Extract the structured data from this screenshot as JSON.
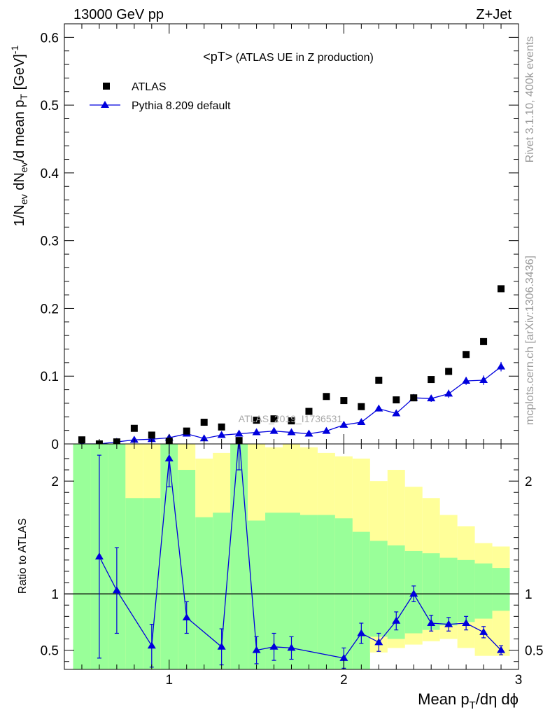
{
  "header": {
    "left": "13000 GeV pp",
    "right": "Z+Jet"
  },
  "side_labels": {
    "rivet": "Rivet 3.1.10,  400k events",
    "mcplots": "mcplots.cern.ch [arXiv:1306.3436]"
  },
  "colors": {
    "data": "#000000",
    "mc": "#0000dd",
    "band_inner": "#99ff99",
    "band_outer": "#ffff99"
  },
  "chart_data": [
    {
      "type": "scatter",
      "title_main": "<pT>",
      "title_sub": " (ATLAS UE in Z production)",
      "ylabel": "1/N_ev dN_ev/d mean p_T [GeV]^-1",
      "watermark": "ATLAS_2019_I1736531",
      "xlim": [
        0.4,
        3.0
      ],
      "ylim": [
        0,
        0.62
      ],
      "yticks": [
        0,
        0.1,
        0.2,
        0.3,
        0.4,
        0.5,
        0.6
      ],
      "ytick_labels": [
        "0",
        "0.1",
        "0.2",
        "0.3",
        "0.4",
        "0.5",
        "0.6"
      ],
      "legend": {
        "position": "top-left",
        "entries": [
          "ATLAS",
          "Pythia 8.209 default"
        ]
      },
      "series": [
        {
          "name": "ATLAS",
          "marker": "square",
          "x": [
            0.5,
            0.6,
            0.7,
            0.8,
            0.9,
            1.0,
            1.1,
            1.2,
            1.3,
            1.4,
            1.5,
            1.6,
            1.7,
            1.8,
            1.9,
            2.0,
            2.1,
            2.2,
            2.3,
            2.4,
            2.5,
            2.6,
            2.7,
            2.8,
            2.9
          ],
          "y": [
            0.006,
            0.0,
            0.003,
            0.023,
            0.013,
            0.004,
            0.019,
            0.032,
            0.025,
            0.005,
            0.035,
            0.037,
            0.034,
            0.048,
            0.07,
            0.064,
            0.055,
            0.094,
            0.065,
            0.068,
            0.095,
            0.107,
            0.132,
            0.151,
            0.229
          ]
        },
        {
          "name": "Pythia 8.209 default",
          "marker": "triangle",
          "x": [
            0.5,
            0.6,
            0.7,
            0.8,
            0.9,
            1.0,
            1.1,
            1.2,
            1.3,
            1.4,
            1.5,
            1.6,
            1.7,
            1.8,
            1.9,
            2.0,
            2.1,
            2.2,
            2.3,
            2.4,
            2.5,
            2.6,
            2.7,
            2.8,
            2.9
          ],
          "y": [
            0.0,
            0.0,
            0.003,
            0.006,
            0.007,
            0.009,
            0.015,
            0.008,
            0.013,
            0.015,
            0.017,
            0.019,
            0.017,
            0.015,
            0.019,
            0.028,
            0.032,
            0.052,
            0.045,
            0.068,
            0.067,
            0.074,
            0.093,
            0.094,
            0.114
          ],
          "err": [
            0.001,
            0.001,
            0.001,
            0.001,
            0.001,
            0.001,
            0.002,
            0.001,
            0.002,
            0.002,
            0.002,
            0.002,
            0.002,
            0.002,
            0.002,
            0.003,
            0.003,
            0.004,
            0.004,
            0.005,
            0.005,
            0.006,
            0.006,
            0.007,
            0.007
          ]
        }
      ]
    },
    {
      "type": "line",
      "ylabel": "Ratio to ATLAS",
      "xlabel": "Mean p_T/dη dϕ",
      "xlim": [
        0.4,
        3.0
      ],
      "ylim": [
        0.33,
        2.33
      ],
      "yticks": [
        0.5,
        1,
        2
      ],
      "ytick_labels": [
        "0.5",
        "1",
        "2"
      ],
      "xticks": [
        1,
        2,
        3
      ],
      "xtick_labels": [
        "1",
        "2",
        "3"
      ],
      "reference": 1,
      "bands": {
        "bin_edges": [
          0.45,
          0.55,
          0.65,
          0.75,
          0.85,
          0.95,
          1.05,
          1.15,
          1.25,
          1.35,
          1.45,
          1.55,
          1.65,
          1.75,
          1.85,
          1.95,
          2.05,
          2.15,
          2.25,
          2.35,
          2.45,
          2.55,
          2.65,
          2.75,
          2.85,
          2.95
        ],
        "outer_lo": [
          0.2,
          0.2,
          0.2,
          0.38,
          0.2,
          0.2,
          0.2,
          0.2,
          0.2,
          0.2,
          0.2,
          0.2,
          0.2,
          0.2,
          0.48,
          0.2,
          0.38,
          0.48,
          0.52,
          0.55,
          0.58,
          0.6,
          0.52,
          0.45,
          0.45
        ],
        "outer_hi": [
          2.4,
          2.4,
          2.4,
          2.35,
          2.35,
          2.4,
          2.35,
          2.2,
          2.25,
          2.4,
          2.4,
          2.3,
          2.35,
          2.3,
          2.25,
          2.22,
          2.2,
          2.0,
          2.1,
          1.95,
          1.85,
          1.7,
          1.6,
          1.45,
          1.42
        ],
        "inner_lo": [
          0.2,
          0.2,
          0.2,
          0.2,
          0.2,
          0.2,
          0.2,
          0.2,
          0.2,
          0.2,
          0.2,
          0.2,
          0.2,
          0.2,
          0.2,
          0.2,
          0.2,
          0.62,
          0.6,
          0.65,
          0.68,
          0.72,
          0.75,
          0.78,
          0.85
        ],
        "inner_hi": [
          2.4,
          2.4,
          2.4,
          1.85,
          1.85,
          2.4,
          2.1,
          1.68,
          1.72,
          2.4,
          1.65,
          1.72,
          1.72,
          1.7,
          1.7,
          1.67,
          1.55,
          1.47,
          1.43,
          1.38,
          1.36,
          1.32,
          1.3,
          1.27,
          1.23
        ]
      },
      "series": [
        {
          "name": "Pythia 8.209 default",
          "x": [
            0.6,
            0.7,
            0.9,
            1.0,
            1.1,
            1.3,
            1.4,
            1.5,
            1.6,
            1.7,
            2.0,
            2.1,
            2.2,
            2.3,
            2.4,
            2.5,
            2.6,
            2.7,
            2.8,
            2.9
          ],
          "y": [
            1.33,
            1.03,
            0.54,
            2.2,
            0.79,
            0.53,
            2.4,
            0.5,
            0.53,
            0.52,
            0.43,
            0.65,
            0.57,
            0.76,
            1.0,
            0.74,
            0.73,
            0.74,
            0.66,
            0.5
          ],
          "err": [
            0.9,
            0.38,
            0.19,
            0.25,
            0.14,
            0.16,
            0.3,
            0.12,
            0.12,
            0.1,
            0.09,
            0.09,
            0.08,
            0.08,
            0.07,
            0.07,
            0.06,
            0.06,
            0.05,
            0.04
          ]
        }
      ]
    }
  ]
}
